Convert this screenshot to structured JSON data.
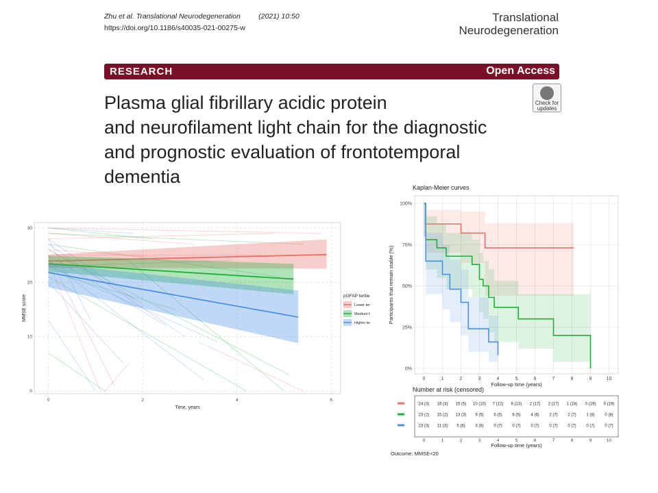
{
  "header": {
    "authors": "Zhu et al.",
    "journal_abbrev": "Translational Neurodegeneration",
    "year_page": "(2021) 10:50",
    "doi": "https://doi.org/10.1186/s40035-021-00275-w",
    "journal_line1": "Translational",
    "journal_line2": "Neurodegeneration"
  },
  "banner": {
    "left": "RESEARCH",
    "right": "Open Access"
  },
  "badge": {
    "line1": "Check for",
    "line2": "updates"
  },
  "title": {
    "line1": "Plasma glial fibrillary acidic protein",
    "line2": "and neurofilament light chain for the diagnostic",
    "line3": "and prognostic evaluation of frontotemporal",
    "line4": "dementia"
  },
  "colors": {
    "lower": "#e8706a",
    "medium": "#1fae3a",
    "higher": "#4a90e2",
    "banner": "#7a1028"
  },
  "chart_data": [
    {
      "type": "line",
      "xlabel": "Time, years",
      "ylabel": "MMSE score",
      "xticks": [
        0,
        2,
        4,
        6
      ],
      "yticks": [
        0,
        10,
        20,
        30
      ],
      "xlim": [
        -0.3,
        6.2
      ],
      "ylim": [
        -0.5,
        31
      ],
      "legend": {
        "title": "pGFAP tertile",
        "position": "right"
      },
      "series": [
        {
          "name": "Lower tertile",
          "color": "#e8706a",
          "x": [
            0,
            5.9
          ],
          "y": [
            23.9,
            25.1
          ],
          "ci_upper": [
            25.1,
            27.9
          ],
          "ci_lower": [
            22.7,
            22.5
          ]
        },
        {
          "name": "Medium tertile",
          "color": "#1fae3a",
          "x": [
            0,
            5.2
          ],
          "y": [
            23.4,
            20.6
          ],
          "ci_upper": [
            24.9,
            23.4
          ],
          "ci_lower": [
            22.0,
            17.8
          ]
        },
        {
          "name": "Higher tertile",
          "color": "#4a90e2",
          "x": [
            0,
            5.3
          ],
          "y": [
            21.8,
            13.6
          ],
          "ci_upper": [
            23.5,
            18.5
          ],
          "ci_lower": [
            19.1,
            8.8
          ]
        }
      ]
    },
    {
      "type": "line",
      "title": "Kaplan-Meier curves",
      "xlabel": "Follow-up time (years)",
      "ylabel": "Participants that remain stable (%)",
      "xticks": [
        0,
        1,
        2,
        3,
        4,
        5,
        6,
        7,
        8,
        9,
        10
      ],
      "yticks": [
        "0%",
        "25%",
        "50%",
        "75%",
        "100%"
      ],
      "xlim": [
        -0.5,
        10.5
      ],
      "ylim": [
        0,
        100
      ],
      "series": [
        {
          "name": "Lower tertile",
          "color": "#e8706a",
          "x": [
            0,
            0.1,
            2,
            3.3,
            8.1
          ],
          "y": [
            100,
            87.5,
            82,
            73,
            73
          ],
          "ci_upper": [
            100,
            96,
            95,
            88,
            88
          ],
          "ci_lower": [
            80,
            70,
            64,
            44,
            44
          ]
        },
        {
          "name": "Medium tertile",
          "color": "#1fae3a",
          "x": [
            0,
            0.1,
            0.7,
            1.2,
            2.6,
            3.0,
            3.2,
            3.5,
            3.8,
            5.1,
            7.0,
            9.0
          ],
          "y": [
            100,
            78,
            73,
            68,
            63,
            54,
            50,
            43,
            37,
            30,
            20,
            0
          ],
          "ci_upper": [
            100,
            92,
            88,
            82,
            78,
            70,
            65,
            60,
            53,
            45,
            45,
            45
          ],
          "ci_lower": [
            80,
            60,
            55,
            48,
            43,
            34,
            30,
            22,
            16,
            12,
            4,
            0
          ]
        },
        {
          "name": "Higher tertile",
          "color": "#4a90e2",
          "x": [
            0,
            0.1,
            1.0,
            1.4,
            2.0,
            2.4,
            3.5,
            4.0
          ],
          "y": [
            100,
            65,
            57,
            48,
            40,
            24,
            16,
            8
          ],
          "ci_upper": [
            100,
            82,
            75,
            66,
            60,
            43,
            32,
            22
          ],
          "ci_lower": [
            80,
            45,
            36,
            28,
            20,
            10,
            4,
            0
          ]
        }
      ]
    },
    {
      "type": "table",
      "title": "Number at risk (censored)",
      "xlabel": "Follow-up time (years)",
      "xticks": [
        0,
        1,
        2,
        3,
        4,
        5,
        6,
        7,
        8,
        9,
        10
      ],
      "rows": [
        {
          "name": "Lower tertile",
          "color": "#e8706a",
          "values": [
            "24 (3)",
            "18 (3)",
            "15 (5)",
            "10 (10)",
            "7 (12)",
            "6 (13)",
            "2 (17)",
            "2 (17)",
            "1 (18)",
            "0 (19)",
            "0 (19)"
          ]
        },
        {
          "name": "Medium tertile",
          "color": "#1fae3a",
          "values": [
            "23 (2)",
            "15 (2)",
            "13 (3)",
            "9 (5)",
            "6 (5)",
            "6 (5)",
            "4 (6)",
            "2 (7)",
            "2 (7)",
            "1 (8)",
            "0 (8)"
          ]
        },
        {
          "name": "Higher tertile",
          "color": "#4a90e2",
          "values": [
            "23 (3)",
            "11 (3)",
            "5 (6)",
            "3 (6)",
            "0 (7)",
            "0 (7)",
            "0 (7)",
            "0 (7)",
            "0 (7)",
            "0 (7)",
            "0 (7)"
          ]
        }
      ],
      "note": "Outcome: MMSE<20"
    }
  ]
}
